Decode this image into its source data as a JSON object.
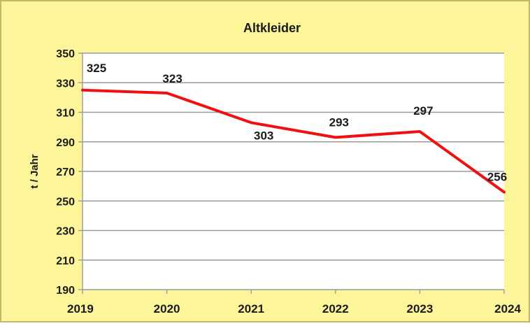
{
  "colors": {
    "chart_area_background": "#fdf59a",
    "plot_background": "#ffffff",
    "frame_border": "#c8b46a",
    "gridline": "#9a9a9a",
    "series_line": "#ee1111",
    "text": "#1a1a1a"
  },
  "chart_data": {
    "type": "line",
    "title": "Altkleider",
    "xlabel": "",
    "ylabel": "t / Jahr",
    "categories": [
      "2019",
      "2020",
      "2021",
      "2022",
      "2023",
      "2024"
    ],
    "series": [
      {
        "values": [
          325,
          323,
          303,
          293,
          297,
          256
        ],
        "color": "#ee1111"
      }
    ],
    "ylim": [
      190,
      350
    ],
    "yticks": [
      190,
      210,
      230,
      250,
      270,
      290,
      310,
      330,
      350
    ],
    "grid": true,
    "legend": "none",
    "data_labels": [
      "325",
      "323",
      "303",
      "293",
      "297",
      "256"
    ]
  }
}
